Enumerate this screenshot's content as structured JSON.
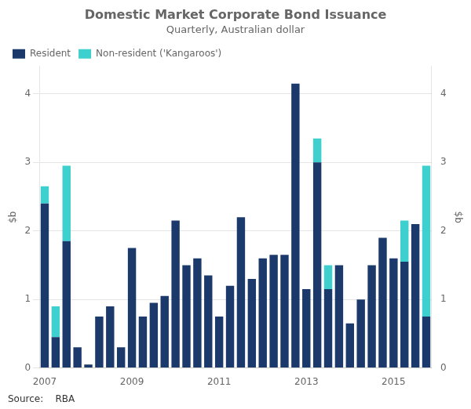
{
  "chart_data": {
    "type": "bar",
    "title": "Domestic Market Corporate Bond Issuance",
    "subtitle": "Quarterly, Australian dollar",
    "ylabel": "$b",
    "y2label": "$b",
    "annotations": [
      "Source:    RBA"
    ],
    "categories": [
      "2007",
      null,
      null,
      null,
      null,
      null,
      null,
      null,
      "2009",
      null,
      null,
      null,
      null,
      null,
      null,
      null,
      "2011",
      null,
      null,
      null,
      null,
      null,
      null,
      null,
      "2013",
      null,
      null,
      null,
      null,
      null,
      null,
      null,
      "2015",
      null,
      null,
      null
    ],
    "series": [
      {
        "name": "Resident",
        "color": "#1B3A6B",
        "values": [
          2.4,
          0.45,
          1.85,
          0.3,
          0.05,
          0.75,
          0.9,
          0.3,
          1.75,
          0.75,
          0.95,
          1.05,
          2.15,
          1.5,
          1.6,
          1.35,
          0.75,
          1.2,
          2.2,
          1.3,
          1.6,
          1.65,
          1.65,
          4.15,
          1.15,
          3.0,
          1.15,
          1.5,
          0.65,
          1.0,
          1.5,
          1.9,
          1.6,
          1.55,
          2.1,
          0.75
        ]
      },
      {
        "name": "Non-resident ('Kangaroos')",
        "color": "#3ECFCF",
        "values": [
          0.25,
          0.45,
          1.1,
          0.0,
          0.0,
          0.0,
          0.0,
          0.0,
          0.0,
          0.0,
          0.0,
          0.0,
          0.0,
          0.0,
          0.0,
          0.0,
          0.0,
          0.0,
          0.0,
          0.0,
          0.0,
          0.0,
          0.0,
          0.0,
          0.0,
          0.35,
          0.35,
          0.0,
          0.0,
          0.0,
          0.0,
          0.0,
          0.0,
          0.6,
          0.0,
          2.2
        ]
      }
    ],
    "stacked": true,
    "ylim": [
      0,
      4.4
    ],
    "yticks": [
      0,
      1,
      2,
      3,
      4
    ],
    "y2lim": [
      0,
      4.4
    ],
    "y2ticks": [
      0,
      1,
      2,
      3,
      4
    ],
    "grid": true,
    "legend": "upper left"
  }
}
